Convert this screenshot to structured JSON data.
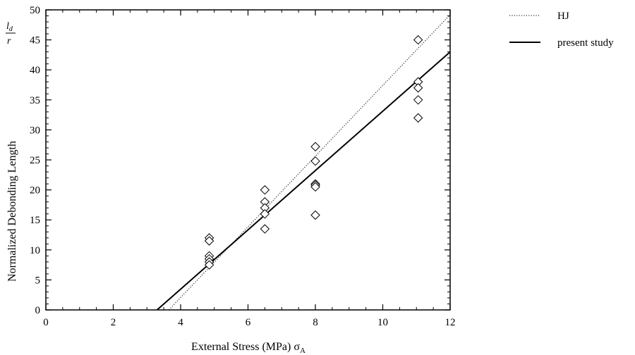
{
  "chart_data": {
    "type": "scatter",
    "xlabel": "External Stress (MPa) σ",
    "xlabel_subscript": "A",
    "ylabel": "Normalized Debonding Length",
    "ylabel_fraction": {
      "numerator": "l",
      "numerator_subscript": "d",
      "denominator": "r"
    },
    "xlim": [
      0,
      12
    ],
    "ylim": [
      0,
      50
    ],
    "xticks": [
      0,
      2,
      4,
      6,
      8,
      10,
      12
    ],
    "yticks": [
      0,
      5,
      10,
      15,
      20,
      25,
      30,
      35,
      40,
      45,
      50
    ],
    "grid": false,
    "legend_position": "top-right outside",
    "series": [
      {
        "name": "HJ",
        "kind": "line",
        "style": "dotted",
        "x": [
          3.65,
          12.0
        ],
        "y": [
          0,
          49.2
        ]
      },
      {
        "name": "present study",
        "kind": "line",
        "style": "solid",
        "x": [
          3.3,
          12.0
        ],
        "y": [
          0,
          43.0
        ]
      },
      {
        "kind": "scatter",
        "marker": "diamond",
        "x": [
          4.85,
          4.85,
          4.85,
          4.85,
          4.85,
          4.85,
          6.5,
          6.5,
          6.5,
          6.5,
          6.5,
          8.0,
          8.0,
          8.0,
          8.0,
          8.0,
          8.0,
          11.05,
          11.05,
          11.05,
          11.05,
          11.05
        ],
        "y": [
          12,
          11.5,
          9,
          8.5,
          8,
          7.5,
          20,
          18,
          17,
          16,
          13.5,
          27.2,
          24.8,
          21,
          20.8,
          20.5,
          15.8,
          45,
          38,
          37,
          35,
          32
        ]
      }
    ]
  }
}
